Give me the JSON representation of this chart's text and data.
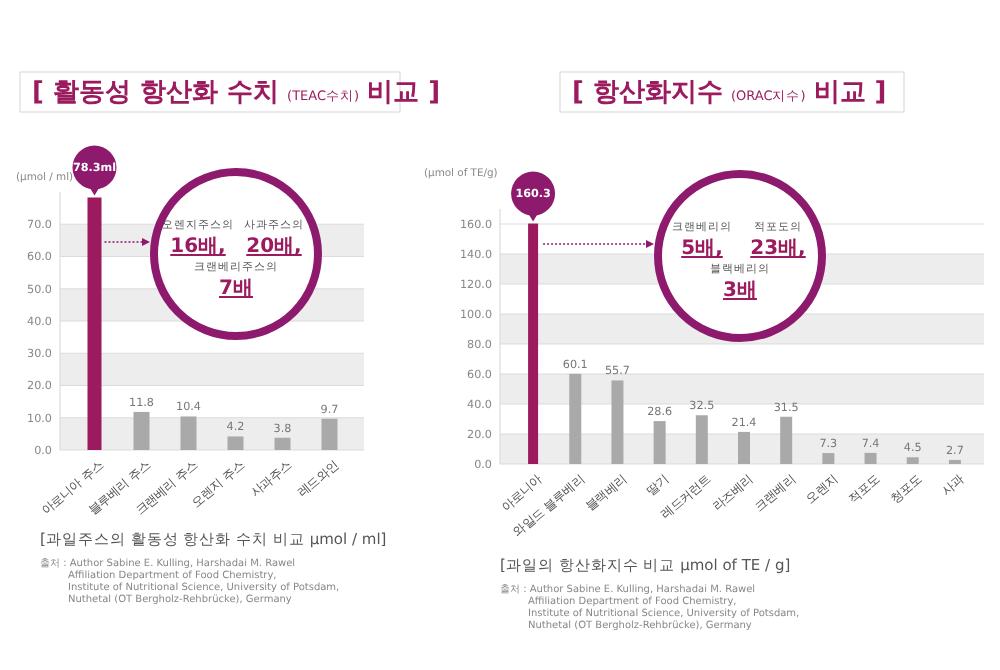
{
  "chart_data": [
    {
      "type": "bar",
      "title": "[ 활동성 항산화 수치 (TEAC수치) 비교 ]",
      "ylabel": "(μmol / ml)",
      "categories": [
        "아로니아 주스",
        "블루베리 주스",
        "크랜베리 주스",
        "오렌지 주스",
        "사과주스",
        "레드와인"
      ],
      "values": [
        78.3,
        11.8,
        10.4,
        4.2,
        3.8,
        9.7
      ],
      "value_labels": [
        "78.3ml",
        "11.8",
        "10.4",
        "4.2",
        "3.8",
        "9.7"
      ],
      "colors": [
        "#9b1b5e",
        "#a9a9a9",
        "#a9a9a9",
        "#a9a9a9",
        "#a9a9a9",
        "#a9a9a9"
      ],
      "ylim": [
        0,
        80
      ],
      "yticks": [
        {
          "value": 0,
          "label": "0.0"
        },
        {
          "value": 10,
          "label": "10.0"
        },
        {
          "value": 20,
          "label": "20.0"
        },
        {
          "value": 30,
          "label": "30.0"
        },
        {
          "value": 40,
          "label": "40.0"
        },
        {
          "value": 50,
          "label": "50.0"
        },
        {
          "value": 60,
          "label": "60.0"
        },
        {
          "value": 70,
          "label": "70.0"
        }
      ],
      "grid": "y",
      "annotations": [
        "오렌지주스의 16배,",
        "사과주스의 20배,",
        "크랜베리주스의 7배",
        "[과일주스의 활동성 항산화 수치 비교 μmol / ml]",
        "출처 : Author Sabine E. Kulling, Harshadai M. Rawel",
        "Affiliation Department of Food Chemistry,",
        "Institute of Nutritional Science, University of Potsdam,",
        "Nuthetal (OT Bergholz-Rehbrücke), Germany"
      ]
    },
    {
      "type": "bar",
      "title": "[ 항산화지수 (ORAC지수) 비교 ]",
      "ylabel": "(μmol of TE/g)",
      "categories": [
        "아로니아",
        "와일드 블루베리",
        "블랙베리",
        "딸기",
        "레드커런트",
        "라즈베리",
        "크랜베리",
        "오렌지",
        "적포도",
        "청포도",
        "사과"
      ],
      "values": [
        160.3,
        60.1,
        55.7,
        28.6,
        32.5,
        21.4,
        31.5,
        7.3,
        7.4,
        4.5,
        2.7
      ],
      "value_labels": [
        "160.3",
        "60.1",
        "55.7",
        "28.6",
        "32.5",
        "21.4",
        "31.5",
        "7.3",
        "7.4",
        "4.5",
        "2.7"
      ],
      "colors": [
        "#9b1b5e",
        "#a9a9a9",
        "#a9a9a9",
        "#a9a9a9",
        "#a9a9a9",
        "#a9a9a9",
        "#a9a9a9",
        "#a9a9a9",
        "#a9a9a9",
        "#a9a9a9",
        "#a9a9a9"
      ],
      "ylim": [
        0,
        170
      ],
      "yticks": [
        {
          "value": 0,
          "label": "0.0"
        },
        {
          "value": 20,
          "label": "20.0"
        },
        {
          "value": 40,
          "label": "40.0"
        },
        {
          "value": 60,
          "label": "60.0"
        },
        {
          "value": 80,
          "label": "80.0"
        },
        {
          "value": 100,
          "label": "100.0"
        },
        {
          "value": 120,
          "label": "120.0"
        },
        {
          "value": 140,
          "label": "140.0"
        },
        {
          "value": 160,
          "label": "160.0"
        }
      ],
      "grid": "y",
      "annotations": [
        "크랜베리의 5배,",
        "적포도의 23배,",
        "블랙베리의 3배",
        "[과일의 항산화지수 비교 μmol of TE / g]",
        "출처 : Author Sabine E. Kulling, Harshadai M. Rawel",
        "Affiliation Department of Food Chemistry,",
        "Institute of Nutritional Science, University of Potsdam,",
        "Nuthetal (OT Bergholz-Rehbrücke), Germany"
      ]
    }
  ]
}
